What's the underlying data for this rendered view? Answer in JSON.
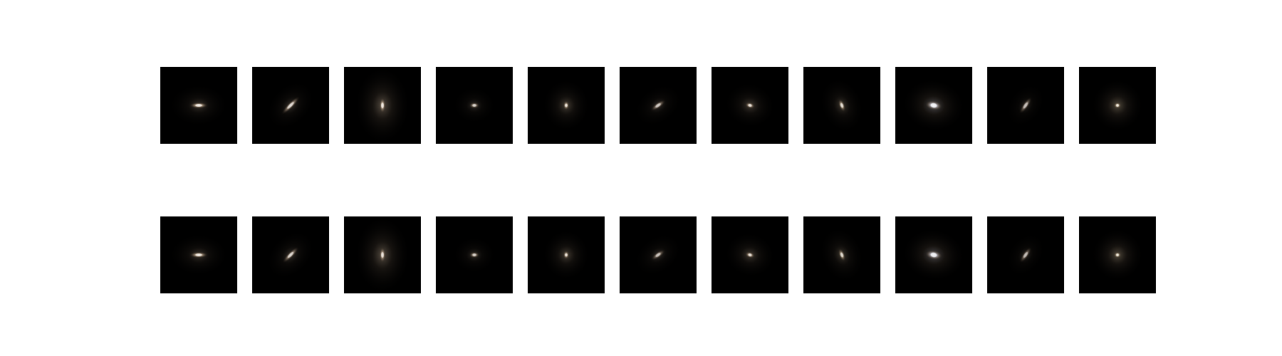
{
  "figure": {
    "background": "#ffffff",
    "panel_background": "#000000",
    "rows": [
      {
        "name": "top-row",
        "galaxies": [
          {
            "shape": "elongated",
            "angle": 0,
            "aspect": 3.0,
            "brightness": 0.9,
            "halo": 0.35,
            "tint": "#f2d8b8"
          },
          {
            "shape": "elongated",
            "angle": -45,
            "aspect": 4.0,
            "brightness": 0.75,
            "halo": 0.3,
            "tint": "#f0d8c0"
          },
          {
            "shape": "elongated",
            "angle": 90,
            "aspect": 2.5,
            "brightness": 0.85,
            "halo": 0.6,
            "tint": "#efd6b8"
          },
          {
            "shape": "compact",
            "angle": 0,
            "aspect": 1.7,
            "brightness": 0.7,
            "halo": 0.25,
            "tint": "#f2dcc2"
          },
          {
            "shape": "round",
            "angle": 90,
            "aspect": 1.5,
            "brightness": 0.8,
            "halo": 0.45,
            "tint": "#f0d8b6"
          },
          {
            "shape": "elongated",
            "angle": -35,
            "aspect": 2.8,
            "brightness": 0.65,
            "halo": 0.25,
            "tint": "#efd8c2"
          },
          {
            "shape": "round",
            "angle": 15,
            "aspect": 1.6,
            "brightness": 0.8,
            "halo": 0.4,
            "tint": "#f0d6b8"
          },
          {
            "shape": "elongated",
            "angle": 70,
            "aspect": 2.2,
            "brightness": 0.75,
            "halo": 0.35,
            "tint": "#f2dcb8"
          },
          {
            "shape": "diffuse",
            "angle": 10,
            "aspect": 1.8,
            "brightness": 0.95,
            "halo": 0.55,
            "tint": "#e6e6f5"
          },
          {
            "shape": "elongated",
            "angle": -55,
            "aspect": 3.2,
            "brightness": 0.6,
            "halo": 0.2,
            "tint": "#f0d8c4"
          },
          {
            "shape": "round",
            "angle": 0,
            "aspect": 1.2,
            "brightness": 0.85,
            "halo": 0.55,
            "tint": "#f2dcb4"
          }
        ]
      },
      {
        "name": "bottom-row",
        "galaxies": [
          {
            "shape": "elongated",
            "angle": 0,
            "aspect": 3.0,
            "brightness": 0.88,
            "halo": 0.35,
            "tint": "#f2d8b8"
          },
          {
            "shape": "elongated",
            "angle": -45,
            "aspect": 3.5,
            "brightness": 0.72,
            "halo": 0.3,
            "tint": "#f0d8c0"
          },
          {
            "shape": "elongated",
            "angle": 90,
            "aspect": 2.5,
            "brightness": 0.8,
            "halo": 0.6,
            "tint": "#efd6b8"
          },
          {
            "shape": "compact",
            "angle": 0,
            "aspect": 1.7,
            "brightness": 0.68,
            "halo": 0.25,
            "tint": "#f2dcc2"
          },
          {
            "shape": "round",
            "angle": 90,
            "aspect": 1.4,
            "brightness": 0.78,
            "halo": 0.45,
            "tint": "#f0d8b6"
          },
          {
            "shape": "elongated",
            "angle": -35,
            "aspect": 2.6,
            "brightness": 0.62,
            "halo": 0.25,
            "tint": "#efd8c2"
          },
          {
            "shape": "round",
            "angle": 15,
            "aspect": 1.6,
            "brightness": 0.78,
            "halo": 0.4,
            "tint": "#f0d6b8"
          },
          {
            "shape": "elongated",
            "angle": 70,
            "aspect": 2.2,
            "brightness": 0.72,
            "halo": 0.35,
            "tint": "#f2dcb8"
          },
          {
            "shape": "diffuse",
            "angle": 10,
            "aspect": 1.8,
            "brightness": 0.92,
            "halo": 0.55,
            "tint": "#e6e6f5"
          },
          {
            "shape": "elongated",
            "angle": -55,
            "aspect": 3.0,
            "brightness": 0.58,
            "halo": 0.2,
            "tint": "#f0d8c4"
          },
          {
            "shape": "round",
            "angle": 0,
            "aspect": 1.2,
            "brightness": 0.82,
            "halo": 0.55,
            "tint": "#f2dcb4"
          }
        ]
      }
    ]
  }
}
